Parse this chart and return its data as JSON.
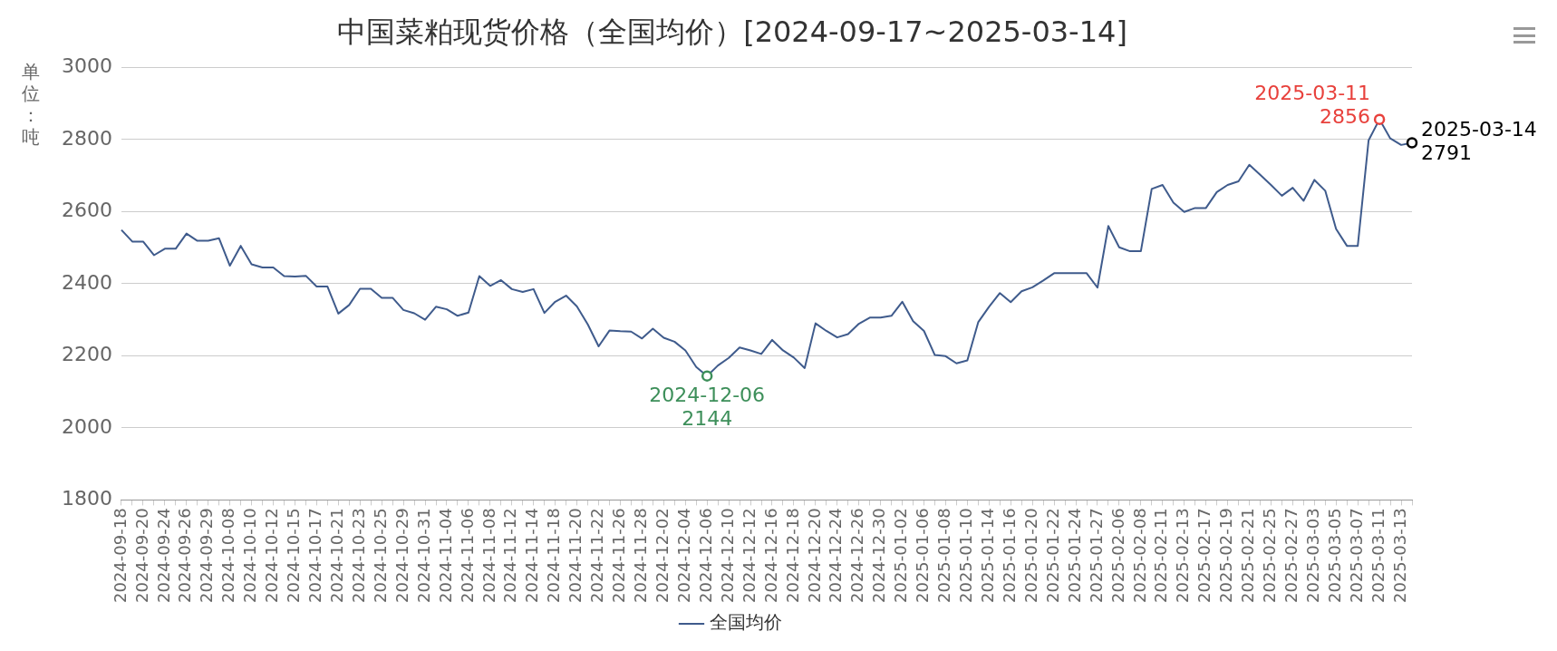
{
  "chart_data": {
    "type": "line",
    "title": "中国菜粕现货价格（全国均价）[2024-09-17~2025-03-14]",
    "ylabel": "单位：吨",
    "categories": [
      "2024-09-18",
      null,
      "2024-09-20",
      null,
      "2024-09-24",
      null,
      "2024-09-26",
      null,
      "2024-09-29",
      null,
      "2024-10-08",
      null,
      "2024-10-10",
      null,
      "2024-10-12",
      null,
      "2024-10-15",
      null,
      "2024-10-17",
      null,
      "2024-10-21",
      null,
      "2024-10-23",
      null,
      "2024-10-25",
      null,
      "2024-10-29",
      null,
      "2024-10-31",
      null,
      "2024-11-04",
      null,
      "2024-11-06",
      null,
      "2024-11-08",
      null,
      "2024-11-12",
      null,
      "2024-11-14",
      null,
      "2024-11-18",
      null,
      "2024-11-20",
      null,
      "2024-11-22",
      null,
      "2024-11-26",
      null,
      "2024-11-28",
      null,
      "2024-12-02",
      null,
      "2024-12-04",
      null,
      "2024-12-06",
      null,
      "2024-12-10",
      null,
      "2024-12-12",
      null,
      "2024-12-16",
      null,
      "2024-12-18",
      null,
      "2024-12-20",
      null,
      "2024-12-24",
      null,
      "2024-12-26",
      null,
      "2024-12-30",
      null,
      "2025-01-02",
      null,
      "2025-01-06",
      null,
      "2025-01-08",
      null,
      "2025-01-10",
      null,
      "2025-01-14",
      null,
      "2025-01-16",
      null,
      "2025-01-20",
      null,
      "2025-01-22",
      null,
      "2025-01-24",
      null,
      "2025-01-27",
      null,
      "2025-02-06",
      null,
      "2025-02-08",
      null,
      "2025-02-11",
      null,
      "2025-02-13",
      null,
      "2025-02-17",
      null,
      "2025-02-19",
      null,
      "2025-02-21",
      null,
      "2025-02-25",
      null,
      "2025-02-27",
      null,
      "2025-03-03",
      null,
      "2025-03-05",
      null,
      "2025-03-07",
      null,
      "2025-03-11",
      null,
      "2025-03-13",
      null
    ],
    "series": [
      {
        "name": "全国均价",
        "color": "#3f5b8c",
        "values": [
          2549,
          2517,
          2517,
          2479,
          2497,
          2497,
          2539,
          2519,
          2519,
          2526,
          2450,
          2505,
          2454,
          2445,
          2445,
          2421,
          2420,
          2422,
          2392,
          2392,
          2317,
          2341,
          2386,
          2386,
          2361,
          2361,
          2327,
          2318,
          2300,
          2336,
          2329,
          2311,
          2320,
          2421,
          2394,
          2410,
          2385,
          2377,
          2385,
          2319,
          2350,
          2367,
          2337,
          2287,
          2226,
          2270,
          2268,
          2267,
          2248,
          2275,
          2250,
          2239,
          2215,
          2169,
          2144,
          2173,
          2194,
          2223,
          2215,
          2205,
          2244,
          2215,
          2195,
          2166,
          2290,
          2269,
          2251,
          2260,
          2289,
          2306,
          2306,
          2311,
          2350,
          2296,
          2269,
          2202,
          2199,
          2179,
          2187,
          2293,
          2336,
          2374,
          2349,
          2379,
          2390,
          2409,
          2429,
          2429,
          2429,
          2429,
          2389,
          2560,
          2501,
          2490,
          2490,
          2663,
          2674,
          2625,
          2599,
          2610,
          2610,
          2654,
          2674,
          2684,
          2730,
          2702,
          2674,
          2644,
          2666,
          2630,
          2688,
          2658,
          2552,
          2505,
          2505,
          2798,
          2856,
          2803,
          2785,
          2791
        ]
      }
    ],
    "ylim": [
      1800,
      3000
    ],
    "yticks": [
      1800,
      2000,
      2200,
      2400,
      2600,
      2800,
      3000
    ],
    "grid": "y",
    "legend": "bottom",
    "marker": "none",
    "line_style": "solid",
    "annotations": [
      {
        "text": "2024-12-06\n2144",
        "x": "2024-12-06",
        "y": 2144
      },
      {
        "text": "2025-03-11\n2856",
        "x": "2025-03-11",
        "y": 2856
      },
      "2025-03-14\n2791"
    ]
  }
}
